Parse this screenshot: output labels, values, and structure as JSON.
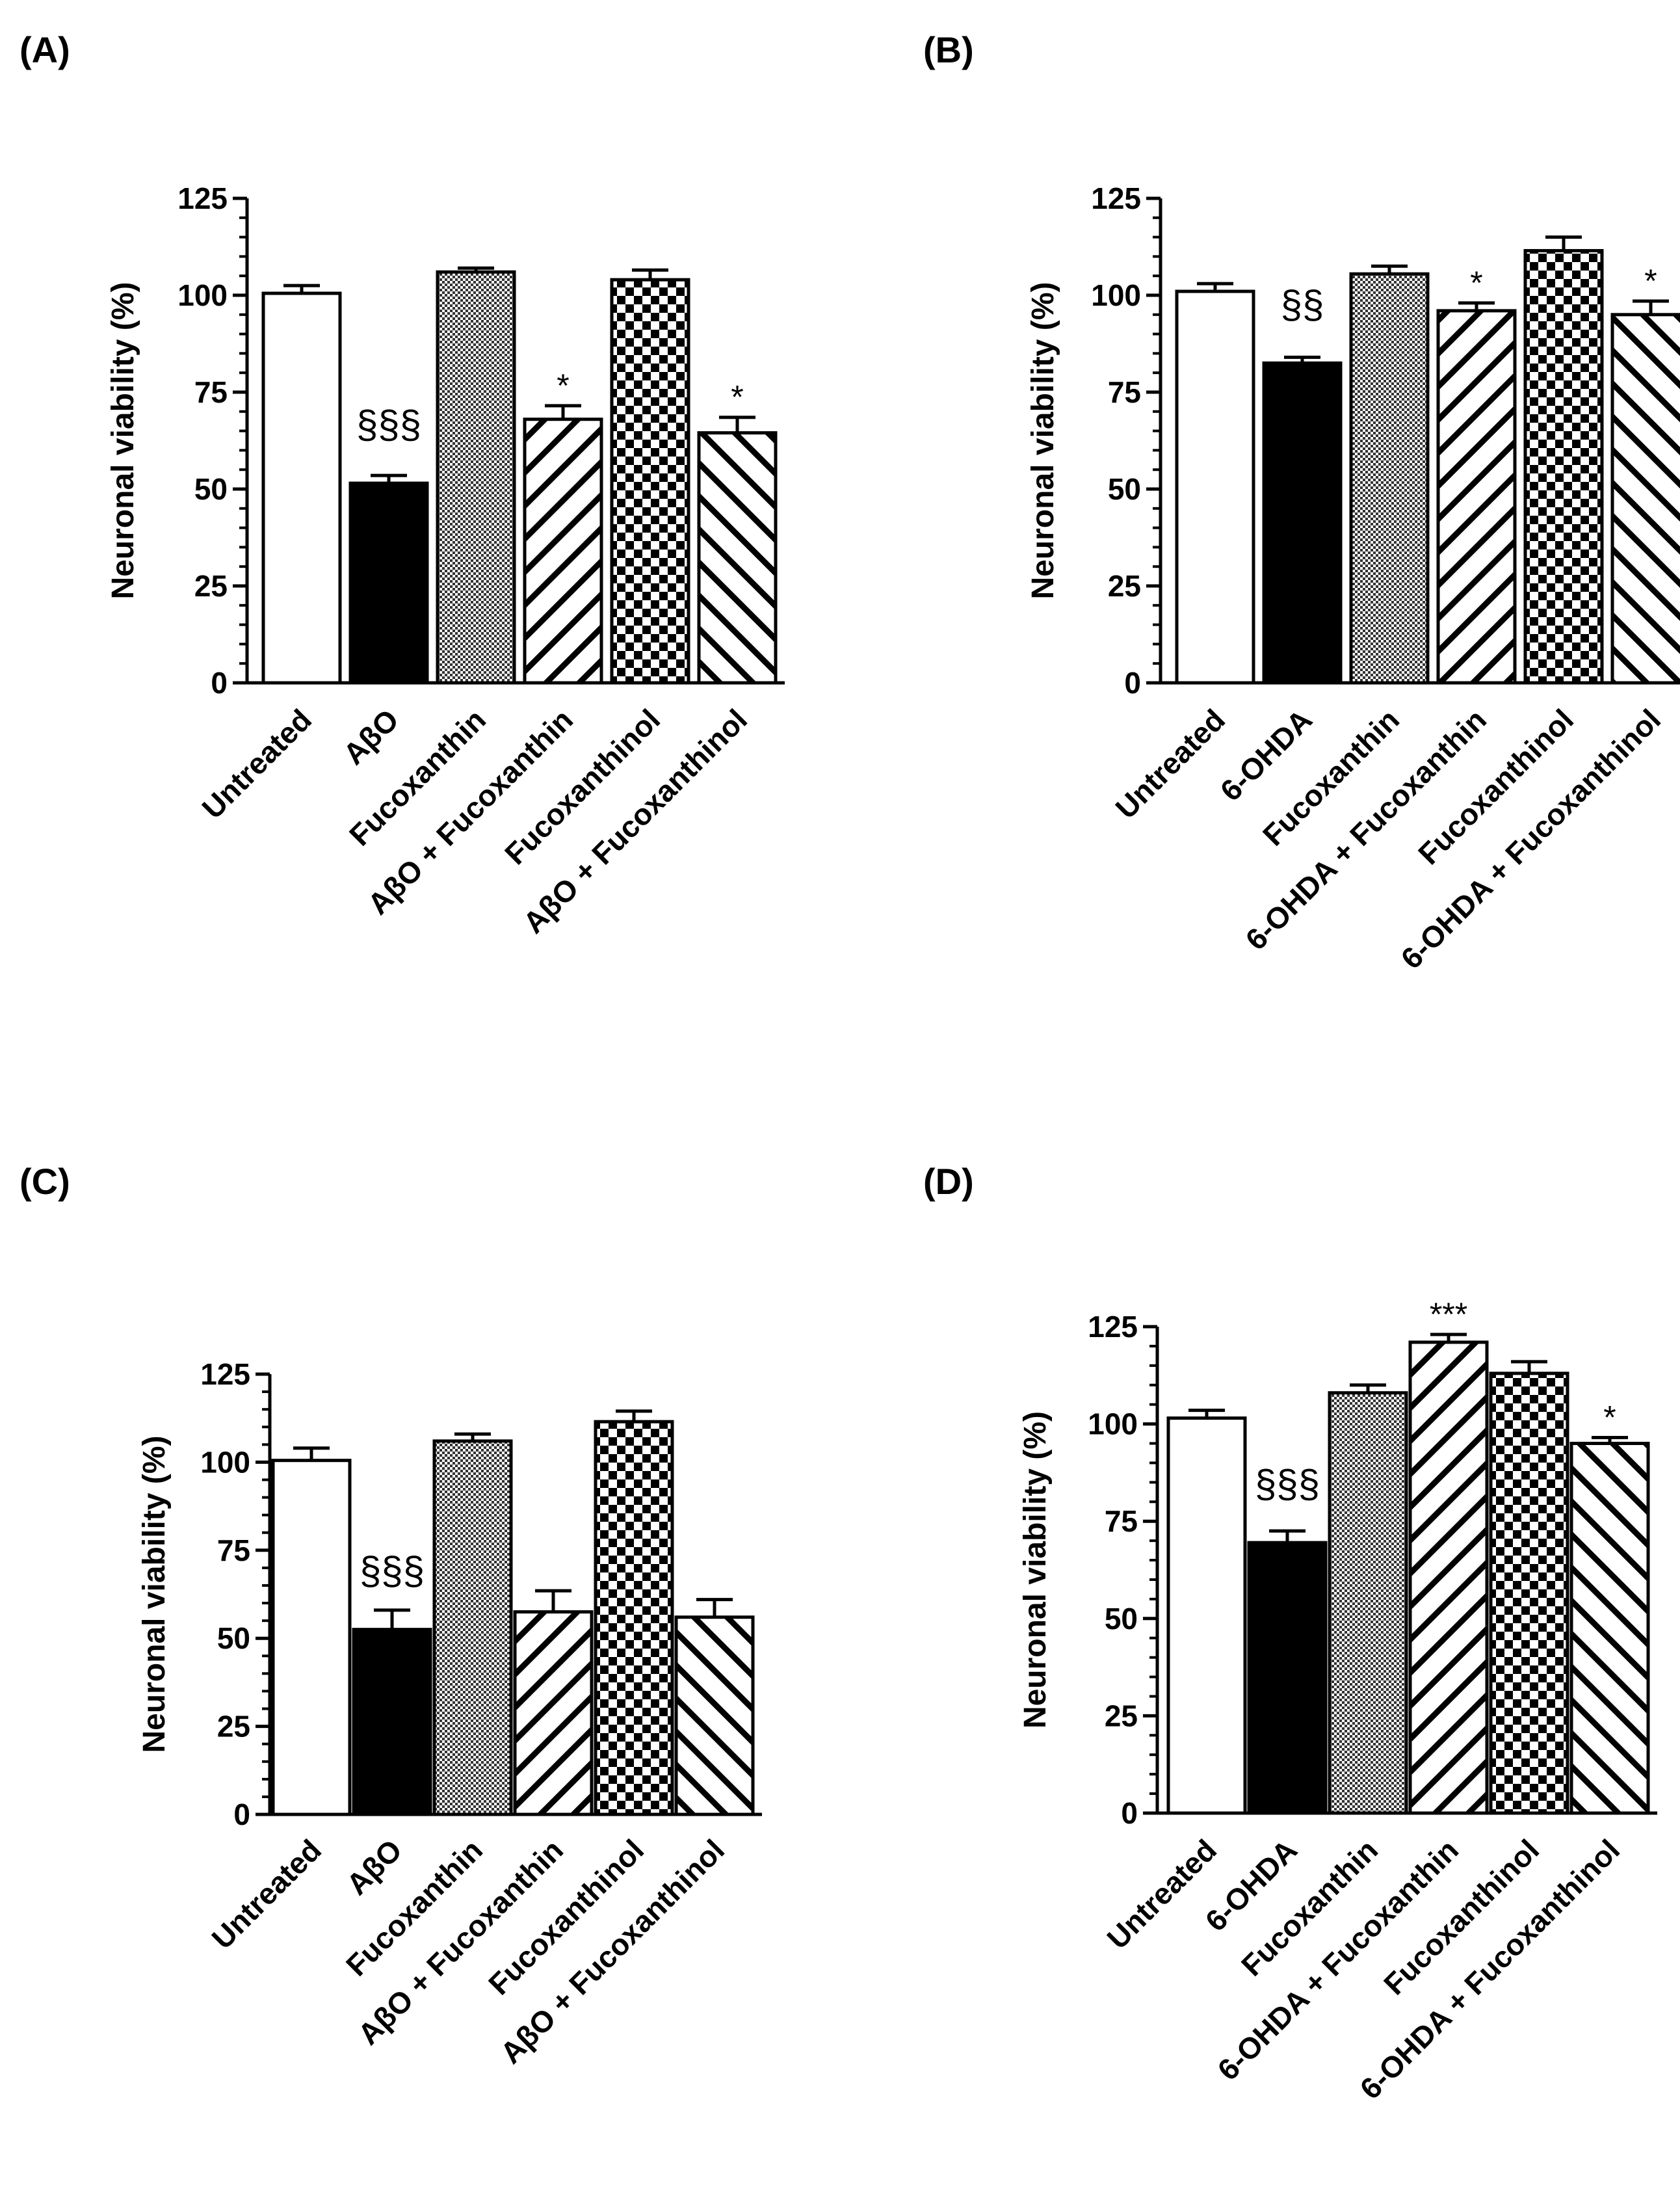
{
  "chart_data": [
    {
      "type": "bar",
      "panel_label": "(A)",
      "ylabel": "Neuronal viability (%)",
      "ylim": [
        0,
        125
      ],
      "yticks": [
        "0",
        "25",
        "50",
        "75",
        "100",
        "125"
      ],
      "categories": [
        "Untreated",
        "AβO",
        "Fucoxanthin",
        "AβO + Fucoxanthin",
        "Fucoxanthinol",
        "AβO + Fucoxanthinol"
      ],
      "values": [
        100.5,
        51.5,
        106,
        68,
        104,
        64.5
      ],
      "errors": [
        2,
        2,
        1,
        3.5,
        2.5,
        4
      ],
      "annotations": [
        "",
        "§§§",
        "",
        "*",
        "",
        "*"
      ],
      "fills": [
        "white",
        "black",
        "dots",
        "hatch-fwd",
        "checker",
        "hatch-back"
      ]
    },
    {
      "type": "bar",
      "panel_label": "(B)",
      "ylabel": "Neuronal viability (%)",
      "ylim": [
        0,
        125
      ],
      "yticks": [
        "0",
        "25",
        "50",
        "75",
        "100",
        "125"
      ],
      "categories": [
        "Untreated",
        "6-OHDA",
        "Fucoxanthin",
        "6-OHDA + Fucoxanthin",
        "Fucoxanthinol",
        "6-OHDA + Fucoxanthinol"
      ],
      "values": [
        101,
        82.5,
        105.5,
        96,
        111.5,
        95
      ],
      "errors": [
        2,
        1.5,
        2,
        2,
        3.5,
        3.5
      ],
      "annotations": [
        "",
        "§§",
        "",
        "*",
        "",
        "*"
      ],
      "fills": [
        "white",
        "black",
        "dots",
        "hatch-fwd",
        "checker",
        "hatch-back"
      ]
    },
    {
      "type": "bar",
      "panel_label": "(C)",
      "ylabel": "Neuronal viability (%)",
      "ylim": [
        0,
        125
      ],
      "yticks": [
        "0",
        "25",
        "50",
        "75",
        "100",
        "125"
      ],
      "categories": [
        "Untreated",
        "AβO",
        "Fucoxanthin",
        "AβO + Fucoxanthin",
        "Fucoxanthinol",
        "AβO + Fucoxanthinol"
      ],
      "values": [
        100.5,
        52.5,
        106,
        57.5,
        111.5,
        56
      ],
      "errors": [
        3.5,
        5.5,
        2,
        6,
        3,
        5
      ],
      "annotations": [
        "",
        "§§§",
        "",
        "",
        "",
        ""
      ],
      "fills": [
        "white",
        "black",
        "dots",
        "hatch-fwd",
        "checker",
        "hatch-back"
      ]
    },
    {
      "type": "bar",
      "panel_label": "(D)",
      "ylabel": "Neuronal viability (%)",
      "ylim": [
        0,
        125
      ],
      "yticks": [
        "0",
        "25",
        "50",
        "75",
        "100",
        "125"
      ],
      "categories": [
        "Untreated",
        "6-OHDA",
        "Fucoxanthin",
        "6-OHDA + Fucoxanthin",
        "Fucoxanthinol",
        "6-OHDA + Fucoxanthinol"
      ],
      "values": [
        101.5,
        69.5,
        108,
        121,
        113,
        95
      ],
      "errors": [
        2,
        3,
        2,
        2,
        3,
        1.5
      ],
      "annotations": [
        "",
        "§§§",
        "",
        "***",
        "",
        "*"
      ],
      "fills": [
        "white",
        "black",
        "dots",
        "hatch-fwd",
        "checker",
        "hatch-back"
      ]
    }
  ]
}
